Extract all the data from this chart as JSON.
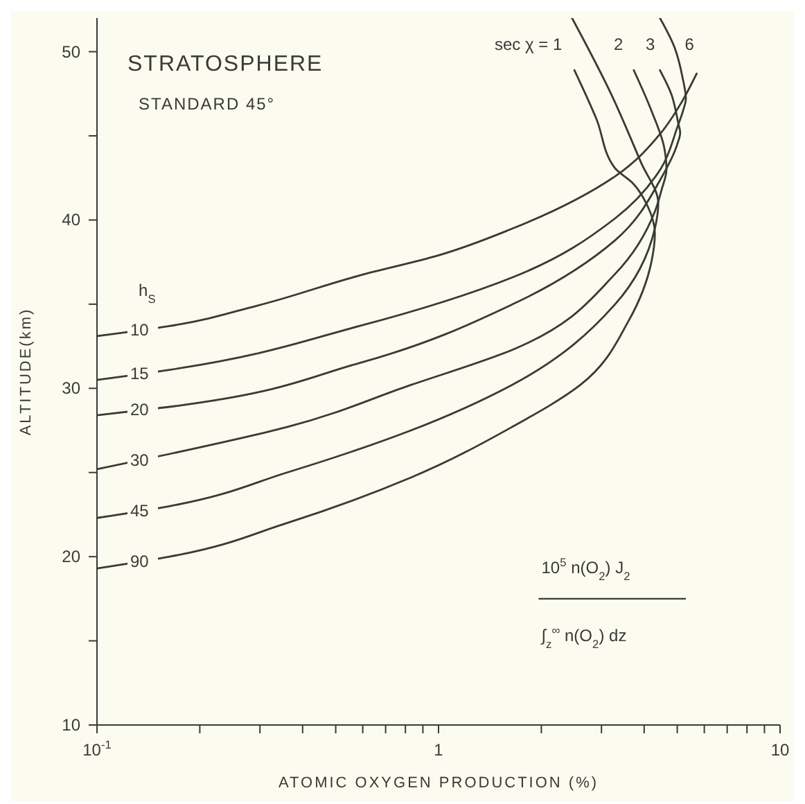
{
  "chart_data": {
    "type": "line",
    "title": "STRATOSPHERE",
    "subtitle": "STANDARD 45°",
    "xlabel": "ATOMIC OXYGEN PRODUCTION (%)",
    "ylabel": "ALTITUDE(km)",
    "log": "x",
    "xlim": [
      0.1,
      10
    ],
    "ylim": [
      10,
      52
    ],
    "xticks": [
      {
        "value": 0.1,
        "label": "10$^{-1}$"
      },
      {
        "value": 0.2,
        "label": null
      },
      {
        "value": 0.3,
        "label": null
      },
      {
        "value": 0.4,
        "label": null
      },
      {
        "value": 0.5,
        "label": null
      },
      {
        "value": 0.6,
        "label": null
      },
      {
        "value": 0.7,
        "label": null
      },
      {
        "value": 0.8,
        "label": null
      },
      {
        "value": 0.9,
        "label": null
      },
      1,
      {
        "value": 2,
        "label": null
      },
      {
        "value": 3,
        "label": null
      },
      {
        "value": 4,
        "label": null
      },
      {
        "value": 5,
        "label": null
      },
      {
        "value": 6,
        "label": null
      },
      {
        "value": 7,
        "label": null
      },
      {
        "value": 8,
        "label": null
      },
      {
        "value": 9,
        "label": null
      },
      10
    ],
    "yticks": [
      10,
      {
        "value": 15,
        "label": null
      },
      20,
      {
        "value": 25,
        "label": null
      },
      30,
      {
        "value": 35,
        "label": null
      },
      40,
      {
        "value": 45,
        "label": null
      },
      50
    ],
    "marker": "none",
    "line_style": "solid",
    "series": [
      {
        "name": "10",
        "color": "#3a3a36",
        "x": [
          0.1,
          0.163,
          0.293,
          0.586,
          1.0,
          1.65,
          3.29,
          4.49,
          5.15,
          5.7
        ],
        "values": [
          33.1,
          33.7,
          34.9,
          36.7,
          37.9,
          39.5,
          42.6,
          45.2,
          47.0,
          48.7
        ]
      },
      {
        "name": "15",
        "color": "#3a3a36",
        "x": [
          0.1,
          0.163,
          0.586,
          1.65,
          3.29,
          4.49,
          5.0,
          5.2,
          5.3,
          5.19,
          4.9,
          4.45
        ],
        "values": [
          30.5,
          31.1,
          33.7,
          36.6,
          40.1,
          43.1,
          45.5,
          46.5,
          47.2,
          48.4,
          50.3,
          52.0
        ]
      },
      {
        "name": "20",
        "color": "#3a3a36",
        "x": [
          0.1,
          0.163,
          0.586,
          1.65,
          3.29,
          4.49,
          5.0,
          5.1,
          5.04,
          4.8,
          4.45
        ],
        "values": [
          28.4,
          28.9,
          31.5,
          35.0,
          38.8,
          42.5,
          44.5,
          45.2,
          45.7,
          47.5,
          48.9
        ]
      },
      {
        "name": "30",
        "color": "#3a3a36",
        "x": [
          0.1,
          0.163,
          0.36,
          0.83,
          1.65,
          3.29,
          4.3,
          4.5,
          4.65,
          4.58,
          4.2,
          3.73
        ],
        "values": [
          25.2,
          26.1,
          27.7,
          30.2,
          32.3,
          36.8,
          40.5,
          41.8,
          43.0,
          44.3,
          46.5,
          48.9
        ]
      },
      {
        "name": "45",
        "color": "#3a3a36",
        "x": [
          0.1,
          0.163,
          0.36,
          0.83,
          1.64,
          3.29,
          4.3,
          4.4,
          3.92,
          3.2,
          2.46
        ],
        "values": [
          22.3,
          23.0,
          25.0,
          27.5,
          30.2,
          35.0,
          39.5,
          41.0,
          43.4,
          47.5,
          52.0
        ]
      },
      {
        "name": "90",
        "color": "#3a3a36",
        "x": [
          0.1,
          0.163,
          0.36,
          0.83,
          1.64,
          2.6,
          3.6,
          4.2,
          4.3,
          4.1,
          3.7,
          3.28,
          2.9,
          2.5
        ],
        "values": [
          19.3,
          20.0,
          22.0,
          24.7,
          27.7,
          30.2,
          34.0,
          37.5,
          39.2,
          40.8,
          42.2,
          43.1,
          46.0,
          48.9
        ]
      }
    ],
    "annotations": [
      "sec χ = 1",
      "2",
      "3",
      "6",
      "h$_{S}$",
      "10$^{5}$  n(O$_{2}$) J$_{2}$",
      "∫$_{z}$$^{∞}$ n(O$_{2}$) dz"
    ]
  }
}
